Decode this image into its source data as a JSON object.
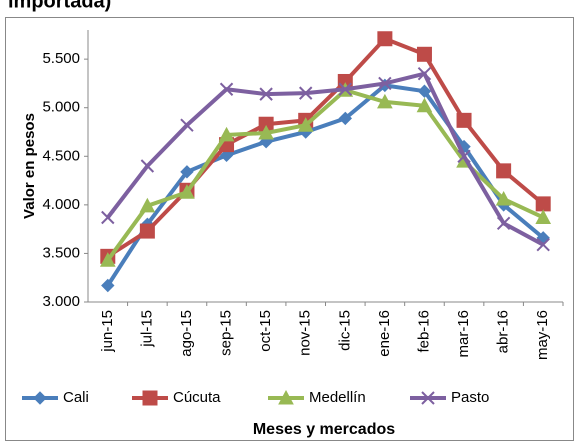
{
  "chart_data": {
    "type": "line",
    "title": "importada)",
    "y_label": "Valor en pesos",
    "x_label": "Meses y mercados",
    "categories": [
      "jun-15",
      "jul-15",
      "ago-15",
      "sep-15",
      "oct-15",
      "nov-15",
      "dic-15",
      "ene-16",
      "feb-16",
      "mar-16",
      "abr-16",
      "may-16"
    ],
    "series": [
      {
        "name": "Cali",
        "color": "#4a7ebb",
        "marker": "diamond",
        "values": [
          3170,
          3800,
          4340,
          4510,
          4650,
          4750,
          4890,
          5230,
          5170,
          4600,
          4000,
          3660
        ]
      },
      {
        "name": "Cúcuta",
        "color": "#be4b48",
        "marker": "square",
        "values": [
          3470,
          3730,
          4150,
          4620,
          4830,
          4870,
          5270,
          5710,
          5550,
          4870,
          4350,
          4010
        ]
      },
      {
        "name": "Medellín",
        "color": "#98b954",
        "marker": "triangle",
        "values": [
          3430,
          3990,
          4130,
          4720,
          4740,
          4820,
          5180,
          5060,
          5020,
          4450,
          4060,
          3870
        ]
      },
      {
        "name": "Pasto",
        "color": "#7d60a0",
        "marker": "x",
        "values": [
          3870,
          4400,
          4820,
          5190,
          5140,
          5150,
          5190,
          5250,
          5350,
          4500,
          3810,
          3590
        ]
      }
    ],
    "ylim": [
      3000,
      5800
    ],
    "yticks": [
      {
        "value": 3000,
        "label": "3.000"
      },
      {
        "value": 3500,
        "label": "3.500"
      },
      {
        "value": 4000,
        "label": "4.000"
      },
      {
        "value": 4500,
        "label": "4.500"
      },
      {
        "value": 5000,
        "label": "5.000"
      },
      {
        "value": 5500,
        "label": "5.500"
      }
    ],
    "grid": false,
    "legend": "bottom"
  }
}
